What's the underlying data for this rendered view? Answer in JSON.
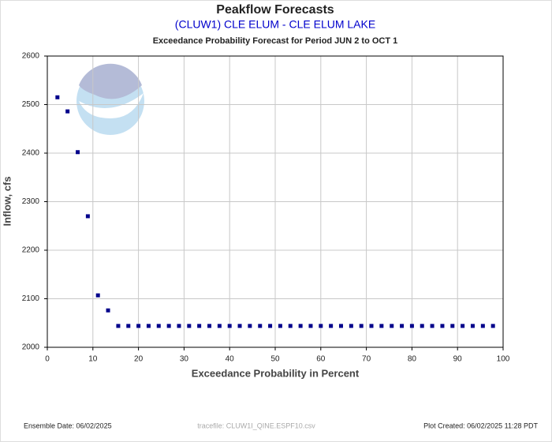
{
  "chart_data": {
    "type": "scatter",
    "title": "Peakflow Forecasts",
    "subtitle": "(CLUW1) CLE ELUM - CLE ELUM LAKE",
    "period_title": "Exceedance Probability Forecast for Period JUN 2 to OCT 1",
    "x_label": "Exceedance Probability in Percent",
    "y_label": "Inflow, cfs",
    "footer_left": "Ensemble Date: 06/02/2025",
    "footer_center": "tracefile: CLUW1I_QINE.ESPF10.csv",
    "footer_right": "Plot Created: 06/02/2025 11:28 PDT",
    "xlim": [
      0,
      100
    ],
    "ylim": [
      2000,
      2600
    ],
    "xticks": [
      0,
      10,
      20,
      30,
      40,
      50,
      60,
      70,
      80,
      90,
      100
    ],
    "yticks": [
      2000,
      2100,
      2200,
      2300,
      2400,
      2500,
      2600
    ],
    "grid": true,
    "color": "#00008b",
    "x": [
      2.22,
      4.44,
      6.67,
      8.89,
      11.11,
      13.33,
      15.56,
      17.78,
      20,
      22.22,
      24.44,
      26.67,
      28.89,
      31.11,
      33.33,
      35.56,
      37.78,
      40,
      42.22,
      44.44,
      46.67,
      48.89,
      51.11,
      53.33,
      55.56,
      57.78,
      60,
      62.22,
      64.44,
      66.67,
      68.89,
      71.11,
      73.33,
      75.56,
      77.78,
      80,
      82.22,
      84.44,
      86.67,
      88.89,
      91.11,
      93.33,
      95.56,
      97.78
    ],
    "values": [
      2515,
      2486,
      2402,
      2270,
      2107,
      2076,
      2044,
      2044,
      2044,
      2044,
      2044,
      2044,
      2044,
      2044,
      2044,
      2044,
      2044,
      2044,
      2044,
      2044,
      2044,
      2044,
      2044,
      2044,
      2044,
      2044,
      2044,
      2044,
      2044,
      2044,
      2044,
      2044,
      2044,
      2044,
      2044,
      2044,
      2044,
      2044,
      2044,
      2044,
      2044,
      2044,
      2044,
      2044
    ]
  }
}
